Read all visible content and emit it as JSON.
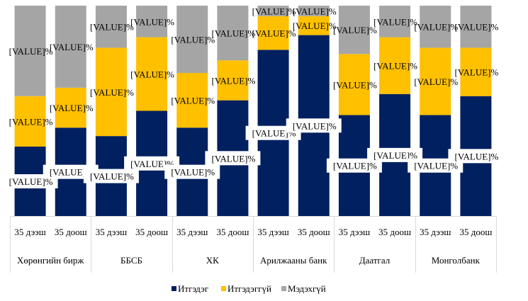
{
  "chart_data": {
    "type": "bar",
    "stacked": "percent",
    "title": "",
    "xlabel": "",
    "ylabel": "",
    "ylim": [
      0,
      100
    ],
    "grid": false,
    "legend_position": "bottom",
    "groups": [
      "Хөрөнгийн бирж",
      "ББСБ",
      "ХК",
      "Арилжааны банк",
      "Даатгал",
      "Монголбанк"
    ],
    "subcategories": [
      "35 дээш",
      "35 доош"
    ],
    "categories": [
      "Хөрөнгийн бирж / 35 дээш",
      "Хөрөнгийн бирж / 35 доош",
      "ББСБ / 35 дээш",
      "ББСБ / 35 доош",
      "ХК / 35 дээш",
      "ХК / 35 доош",
      "Арилжааны банк / 35 дээш",
      "Арилжааны банк / 35 доош",
      "Даатгал / 35 дээш",
      "Даатгал / 35 доош",
      "Монголбанк / 35 дээш",
      "Монголбанк / 35 доош"
    ],
    "series": [
      {
        "name": "Итгэдэг",
        "color": "#002060",
        "values": [
          33,
          42,
          38,
          50,
          42,
          55,
          79,
          86,
          48,
          58,
          48,
          57
        ]
      },
      {
        "name": "Итгэдэггүй",
        "color": "#FFC000",
        "values": [
          24,
          19,
          42,
          35,
          26,
          19,
          16,
          9,
          29,
          27,
          32,
          23
        ]
      },
      {
        "name": "Мэдэхгүй",
        "color": "#A5A5A5",
        "values": [
          43,
          39,
          20,
          15,
          32,
          26,
          5,
          5,
          23,
          15,
          20,
          20
        ]
      }
    ],
    "data_label": "[VALUE]%"
  }
}
